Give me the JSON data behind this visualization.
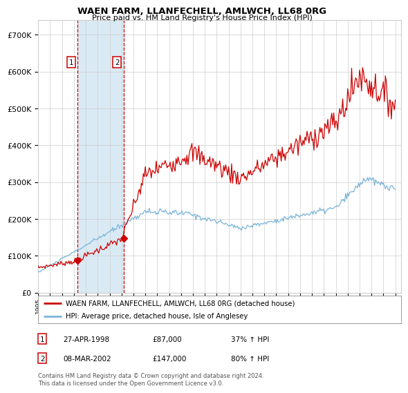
{
  "title": "WAEN FARM, LLANFECHELL, AMLWCH, LL68 0RG",
  "subtitle": "Price paid vs. HM Land Registry's House Price Index (HPI)",
  "legend_line1": "WAEN FARM, LLANFECHELL, AMLWCH, LL68 0RG (detached house)",
  "legend_line2": "HPI: Average price, detached house, Isle of Anglesey",
  "transaction1_price": 87000,
  "transaction2_price": 147000,
  "t1_x": 1998.32,
  "t2_x": 2002.18,
  "hpi_color": "#7ab4d8",
  "price_color": "#cc0000",
  "shade_color": "#daeaf5",
  "vline_color": "#cc0000",
  "grid_color": "#cccccc",
  "background_color": "#ffffff",
  "yticks": [
    0,
    100000,
    200000,
    300000,
    400000,
    500000,
    600000,
    700000
  ],
  "ylim": [
    0,
    740000
  ],
  "xlim": [
    1995.0,
    2025.5
  ],
  "footnote": "Contains HM Land Registry data © Crown copyright and database right 2024.\nThis data is licensed under the Open Government Licence v3.0."
}
